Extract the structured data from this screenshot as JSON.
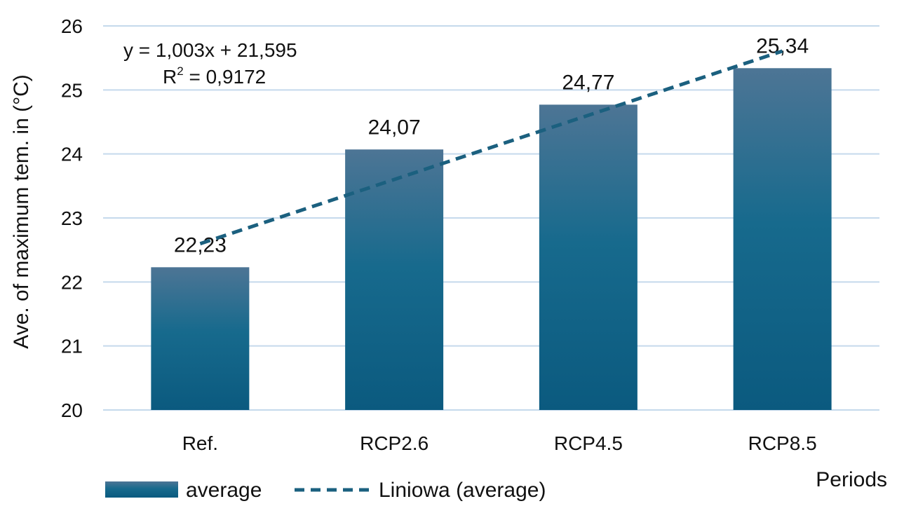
{
  "chart_data": {
    "type": "bar",
    "categories": [
      "Ref.",
      "RCP2.6",
      "RCP4.5",
      "RCP8.5"
    ],
    "series": [
      {
        "name": "average",
        "values": [
          22.23,
          24.07,
          24.77,
          25.34
        ]
      }
    ],
    "data_labels": [
      "22,23",
      "24,07",
      "24,77",
      "25,34"
    ],
    "ylabel": "Ave. of maximum tem. in (°C)",
    "xlabel": "Periods",
    "ylim": [
      20,
      26
    ],
    "yticks": [
      "20",
      "21",
      "22",
      "23",
      "24",
      "25",
      "26"
    ],
    "grid": true,
    "legend_position": "bottom-left",
    "trendline": {
      "type": "linear",
      "name": "Liniowa (average)",
      "slope": 1.003,
      "intercept": 21.595,
      "equation": "y = 1,003x + 21,595",
      "r2_prefix": "R",
      "r2_sup": "2",
      "r2_value": " = 0,9172"
    },
    "colors": {
      "bar_top": "#4d7595",
      "bar_bottom": "#0b5a7f",
      "trend": "#1b607f",
      "grid": "#c5d9ec"
    }
  }
}
